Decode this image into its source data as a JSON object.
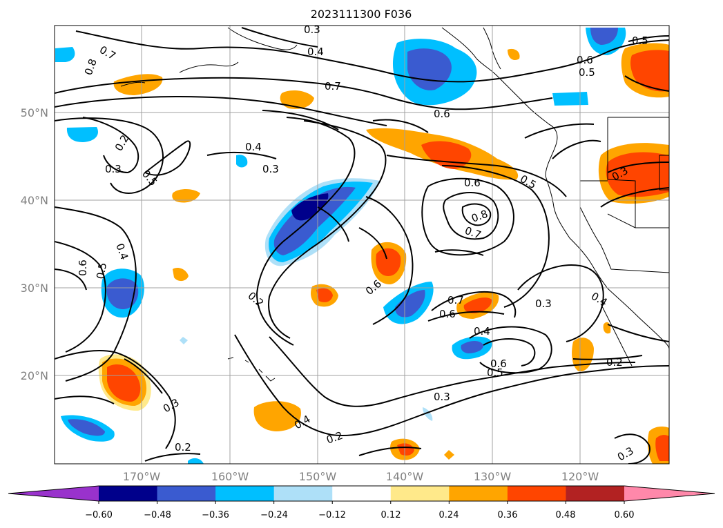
{
  "figure": {
    "title": "2023111300 F036"
  },
  "map": {
    "latitude_labels": [
      "50°N",
      "40°N",
      "30°N",
      "20°N"
    ],
    "longitude_labels": [
      "170°W",
      "160°W",
      "150°W",
      "140°W",
      "130°W",
      "120°W"
    ],
    "gridlines": true,
    "contour_labels": [
      "0.3",
      "0.4",
      "0.5",
      "0.7",
      "0.8",
      "0.7",
      "0.6",
      "0.5",
      "0.6",
      "0.2",
      "0.3",
      "0.5",
      "0.4",
      "0.3",
      "0.6",
      "0.8",
      "0.7",
      "0.5",
      "0.4",
      "0.6",
      "0.5",
      "0.2",
      "0.6",
      "0.7",
      "0.6",
      "0.3",
      "0.4",
      "0.4",
      "0.6",
      "0.5",
      "0.2",
      "0.3",
      "0.3",
      "0.4",
      "0.2",
      "0.2",
      "0.3",
      "0.3"
    ]
  },
  "colorbar": {
    "tick_labels": [
      "−0.60",
      "−0.48",
      "−0.36",
      "−0.24",
      "−0.12",
      "0.12",
      "0.24",
      "0.36",
      "0.48",
      "0.60"
    ],
    "levels": [
      -0.6,
      -0.48,
      -0.36,
      -0.24,
      -0.12,
      0.12,
      0.24,
      0.36,
      0.48,
      0.6
    ],
    "colors": [
      "#9932cc",
      "#00008b",
      "#3a5bd0",
      "#00bfff",
      "#aee0f8",
      "#ffffff",
      "#ffe98a",
      "#ffa500",
      "#ff4500",
      "#b22222",
      "#ff88aa"
    ],
    "extend": "both"
  },
  "colors": {
    "land_outline": "#000000",
    "contour": "#000000",
    "grid": "#a0a0a0"
  }
}
